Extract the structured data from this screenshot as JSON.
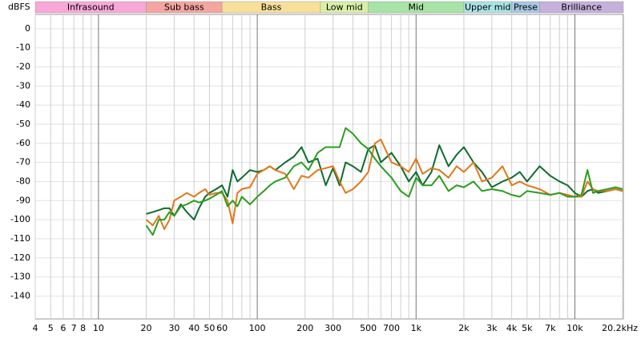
{
  "chart_data": {
    "type": "line",
    "y_label": "dBFS",
    "log_x": true,
    "grid": true,
    "xlim": [
      4,
      20200
    ],
    "ylim": [
      -152,
      7.5
    ],
    "yticks": [
      0,
      -10,
      -20,
      -30,
      -40,
      -50,
      -60,
      -70,
      -80,
      -90,
      -100,
      -110,
      -120,
      -130,
      -140
    ],
    "xticks": [
      4,
      5,
      6,
      7,
      8,
      10,
      20,
      30,
      40,
      50,
      60,
      100,
      200,
      300,
      500,
      700,
      {
        "value": 1000,
        "label": "1k"
      },
      {
        "value": 2000,
        "label": "2k"
      },
      {
        "value": 3000,
        "label": "3k"
      },
      {
        "value": 4000,
        "label": "4k"
      },
      {
        "value": 5000,
        "label": "5k"
      },
      {
        "value": 7000,
        "label": "7k"
      },
      {
        "value": 10000,
        "label": "10k"
      },
      {
        "value": 20200,
        "label": "20.2kHz"
      }
    ],
    "xgrid": [
      4,
      5,
      6,
      7,
      8,
      9,
      10,
      20,
      30,
      40,
      50,
      60,
      70,
      80,
      90,
      100,
      200,
      300,
      400,
      500,
      600,
      700,
      800,
      900,
      1000,
      2000,
      3000,
      4000,
      5000,
      6000,
      7000,
      8000,
      9000,
      10000,
      20000
    ],
    "bands": [
      {
        "name": "Infrasound",
        "from": 4,
        "to": 20,
        "color": "#f7a8d8"
      },
      {
        "name": "Sub bass",
        "from": 20,
        "to": 60,
        "color": "#f4a5a0"
      },
      {
        "name": "Bass",
        "from": 60,
        "to": 250,
        "color": "#f8e09b"
      },
      {
        "name": "Low mid",
        "from": 250,
        "to": 500,
        "color": "#d9f0a7"
      },
      {
        "name": "Mid",
        "from": 500,
        "to": 2000,
        "color": "#a8e3a8"
      },
      {
        "name": "Upper mid",
        "from": 2000,
        "to": 4000,
        "color": "#a9e3e6"
      },
      {
        "name": "Prese",
        "from": 4000,
        "to": 6000,
        "color": "#a8c8e4"
      },
      {
        "name": "Brilliance",
        "from": 6000,
        "to": 20200,
        "color": "#c6b0dc"
      }
    ],
    "x": [
      20,
      22,
      24,
      26,
      28,
      30,
      33,
      36,
      40,
      43,
      47,
      50,
      55,
      60,
      65,
      70,
      75,
      80,
      90,
      100,
      110,
      120,
      130,
      150,
      170,
      190,
      210,
      240,
      270,
      300,
      330,
      360,
      400,
      450,
      500,
      550,
      600,
      700,
      800,
      900,
      1000,
      1100,
      1250,
      1400,
      1600,
      1800,
      2000,
      2300,
      2600,
      3000,
      3500,
      4000,
      4500,
      5000,
      6000,
      7000,
      8000,
      9000,
      10000,
      11000,
      12000,
      13000,
      14000,
      16000,
      18000,
      20000
    ],
    "series": [
      {
        "color": "#0f6b2f",
        "values": [
          -97,
          -96,
          -95,
          -94,
          -94,
          -98,
          -92,
          -96,
          -100,
          -94,
          -88,
          -86,
          -84,
          -82,
          -88,
          -74,
          -80,
          -78,
          -74,
          -75,
          -74,
          -72,
          -74,
          -70,
          -67,
          -62,
          -70,
          -68,
          -82,
          -73,
          -82,
          -70,
          -72,
          -75,
          -63,
          -61,
          -70,
          -65,
          -72,
          -80,
          -75,
          -82,
          -75,
          -61,
          -72,
          -66,
          -62,
          -70,
          -75,
          -83,
          -80,
          -78,
          -75,
          -80,
          -72,
          -77,
          -80,
          -82,
          -86,
          -88,
          -85,
          -84,
          -86,
          -85,
          -84,
          -85
        ]
      },
      {
        "color": "#e0781a",
        "values": [
          -100,
          -103,
          -98,
          -105,
          -100,
          -90,
          -88,
          -86,
          -88,
          -86,
          -84,
          -87,
          -86,
          -86,
          -90,
          -102,
          -86,
          -84,
          -83,
          -76,
          -74,
          -72,
          -74,
          -76,
          -84,
          -77,
          -78,
          -74,
          -73,
          -72,
          -80,
          -86,
          -84,
          -80,
          -75,
          -60,
          -58,
          -70,
          -72,
          -75,
          -68,
          -76,
          -73,
          -74,
          -78,
          -72,
          -75,
          -70,
          -80,
          -78,
          -72,
          -82,
          -80,
          -82,
          -84,
          -87,
          -86,
          -87,
          -88,
          -88,
          -80,
          -84,
          -85,
          -85,
          -84,
          -85
        ]
      },
      {
        "color": "#2b9d1e",
        "values": [
          -103,
          -108,
          -100,
          -100,
          -96,
          -98,
          -93,
          -92,
          -90,
          -91,
          -90,
          -89,
          -87,
          -85,
          -93,
          -90,
          -93,
          -88,
          -92,
          -88,
          -85,
          -82,
          -80,
          -78,
          -72,
          -70,
          -74,
          -65,
          -62,
          -62,
          -62,
          -52,
          -55,
          -60,
          -63,
          -68,
          -72,
          -78,
          -85,
          -88,
          -78,
          -82,
          -82,
          -77,
          -85,
          -82,
          -83,
          -80,
          -85,
          -84,
          -85,
          -87,
          -88,
          -85,
          -86,
          -87,
          -86,
          -88,
          -88,
          -87,
          -74,
          -86,
          -85,
          -84,
          -83,
          -84
        ]
      }
    ]
  }
}
